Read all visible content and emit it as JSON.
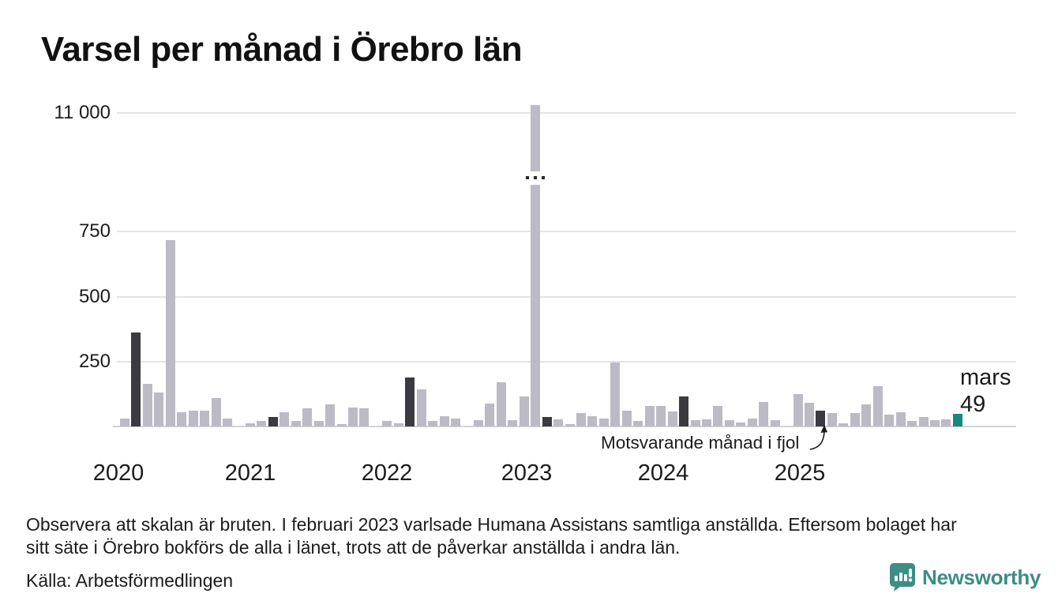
{
  "header": {
    "title": "Varsel per månad i Örebro län"
  },
  "chart_data": {
    "type": "bar",
    "title": "Varsel per månad i Örebro län",
    "ylabel": "",
    "xlabel": "",
    "y_ticks": [
      "11 000",
      "750",
      "500",
      "250"
    ],
    "y_tick_values": [
      11000,
      750,
      500,
      250
    ],
    "broken_scale": true,
    "broken_scale_note": "scale broken above 750, top tick 11 000",
    "x_year_labels": [
      "2020",
      "2021",
      "2022",
      "2023",
      "2024",
      "2025"
    ],
    "legend_position": "none",
    "grid": true,
    "bar_format": [
      "value",
      "color_key (g=gray, d=dark same-month-previous-years, t=teal latest, g-broken=gray bar on broken scale)"
    ],
    "bars": [
      [
        30,
        "g"
      ],
      [
        360,
        "d"
      ],
      [
        165,
        "g"
      ],
      [
        130,
        "g"
      ],
      [
        715,
        "g"
      ],
      [
        55,
        "g"
      ],
      [
        60,
        "g"
      ],
      [
        60,
        "g"
      ],
      [
        110,
        "g"
      ],
      [
        30,
        "g"
      ],
      [
        0,
        "g"
      ],
      [
        12,
        "g"
      ],
      [
        22,
        "g"
      ],
      [
        35,
        "d"
      ],
      [
        55,
        "g"
      ],
      [
        20,
        "g"
      ],
      [
        70,
        "g"
      ],
      [
        20,
        "g"
      ],
      [
        85,
        "g"
      ],
      [
        8,
        "g"
      ],
      [
        73,
        "g"
      ],
      [
        71,
        "g"
      ],
      [
        0,
        "g"
      ],
      [
        20,
        "g"
      ],
      [
        12,
        "g"
      ],
      [
        188,
        "d"
      ],
      [
        142,
        "g"
      ],
      [
        20,
        "g"
      ],
      [
        38,
        "g"
      ],
      [
        30,
        "g"
      ],
      [
        0,
        "g"
      ],
      [
        25,
        "g"
      ],
      [
        88,
        "g"
      ],
      [
        170,
        "g"
      ],
      [
        25,
        "g"
      ],
      [
        115,
        "g"
      ],
      [
        11300,
        "g-broken"
      ],
      [
        35,
        "d"
      ],
      [
        27,
        "g"
      ],
      [
        10,
        "g"
      ],
      [
        52,
        "g"
      ],
      [
        40,
        "g"
      ],
      [
        30,
        "g"
      ],
      [
        245,
        "g"
      ],
      [
        60,
        "g"
      ],
      [
        20,
        "g"
      ],
      [
        80,
        "g"
      ],
      [
        80,
        "g"
      ],
      [
        58,
        "g"
      ],
      [
        115,
        "d"
      ],
      [
        25,
        "g"
      ],
      [
        28,
        "g"
      ],
      [
        78,
        "g"
      ],
      [
        25,
        "g"
      ],
      [
        15,
        "g"
      ],
      [
        30,
        "g"
      ],
      [
        95,
        "g"
      ],
      [
        25,
        "g"
      ],
      [
        0,
        "g"
      ],
      [
        125,
        "g"
      ],
      [
        90,
        "g"
      ],
      [
        62,
        "d"
      ],
      [
        52,
        "g"
      ],
      [
        12,
        "g"
      ],
      [
        51,
        "g"
      ],
      [
        86,
        "g"
      ],
      [
        155,
        "g"
      ],
      [
        46,
        "g"
      ],
      [
        56,
        "g"
      ],
      [
        20,
        "g"
      ],
      [
        36,
        "g"
      ],
      [
        25,
        "g"
      ],
      [
        28,
        "g"
      ],
      [
        49,
        "t"
      ]
    ],
    "colors": {
      "g": "#bcbac4",
      "d": "#3a3a40",
      "t": "#17897e"
    }
  },
  "annotations": {
    "prev_year": "Motsvarande månad i fjol",
    "latest_month": "mars",
    "latest_value": "49"
  },
  "notes": {
    "line1": "Observera att skalan är bruten. I februari 2023 varlsade Humana Assistans samtliga anställda. Eftersom bolaget har",
    "line2": "sitt säte i Örebro bokförs de alla i länet, trots att de påverkar anställda i andra län."
  },
  "source": {
    "text": "Källa: Arbetsförmedlingen"
  },
  "branding": {
    "name": "Newsworthy",
    "color": "#3c8d83"
  }
}
